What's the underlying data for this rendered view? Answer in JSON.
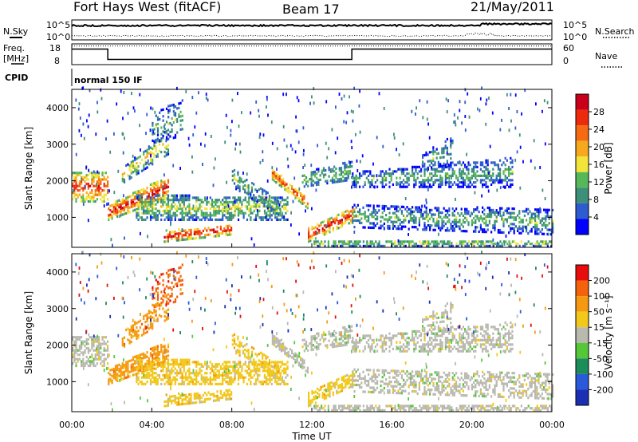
{
  "header": {
    "radar": "Fort Hays West (fitACF)",
    "beam": "Beam 17",
    "date": "21/May/2011"
  },
  "noise_panel": {
    "left_label": "N.Sky",
    "right_label": "N.Search",
    "left_top": "10^5",
    "left_bottom": "10^0",
    "right_top": "10^5",
    "right_bottom": "10^0"
  },
  "freq_panel": {
    "left_label_1": "Freq.",
    "left_label_2": "[MHz]",
    "right_label": "Nave",
    "left_top": "18",
    "left_bottom": "8",
    "right_top": "60",
    "right_bottom": "0"
  },
  "cpid": {
    "label": "CPID",
    "mode": "normal 150 IF"
  },
  "chart_data": [
    {
      "type": "heatmap",
      "panel": "power",
      "ylabel": "Slant Range [km]",
      "xlabel": "",
      "ylim": [
        180,
        4500
      ],
      "xlim_hours": [
        0,
        24
      ],
      "yticks": [
        "1000",
        "2000",
        "3000",
        "4000"
      ],
      "colorbar": {
        "label": "Power [dB]",
        "ticks": [
          "4",
          "8",
          "12",
          "16",
          "20",
          "24",
          "28"
        ],
        "colors": [
          "#0000ff",
          "#2d5bd0",
          "#3d8f7a",
          "#57b85a",
          "#f3e43a",
          "#f7a91e",
          "#f56a12",
          "#ee2a0e",
          "#c9001a"
        ]
      }
    },
    {
      "type": "heatmap",
      "panel": "velocity",
      "ylabel": "Slant Range [km]",
      "xlabel": "Time UT",
      "ylim": [
        180,
        4500
      ],
      "xlim_hours": [
        0,
        24
      ],
      "yticks": [
        "1000",
        "2000",
        "3000",
        "4000"
      ],
      "xticks": [
        "00:00",
        "04:00",
        "08:00",
        "12:00",
        "16:00",
        "20:00",
        "00:00"
      ],
      "colorbar": {
        "label": "Velocity [m s⁻¹]",
        "ticks": [
          "200",
          "100",
          "50",
          "15",
          "-15",
          "-50",
          "-100",
          "-200"
        ],
        "colors": [
          "#1a2fb4",
          "#2a5ad9",
          "#1b8c5a",
          "#55c83a",
          "#b9b9b0",
          "#f2c81a",
          "#f59a10",
          "#f4620a",
          "#e80c0c"
        ]
      }
    }
  ]
}
